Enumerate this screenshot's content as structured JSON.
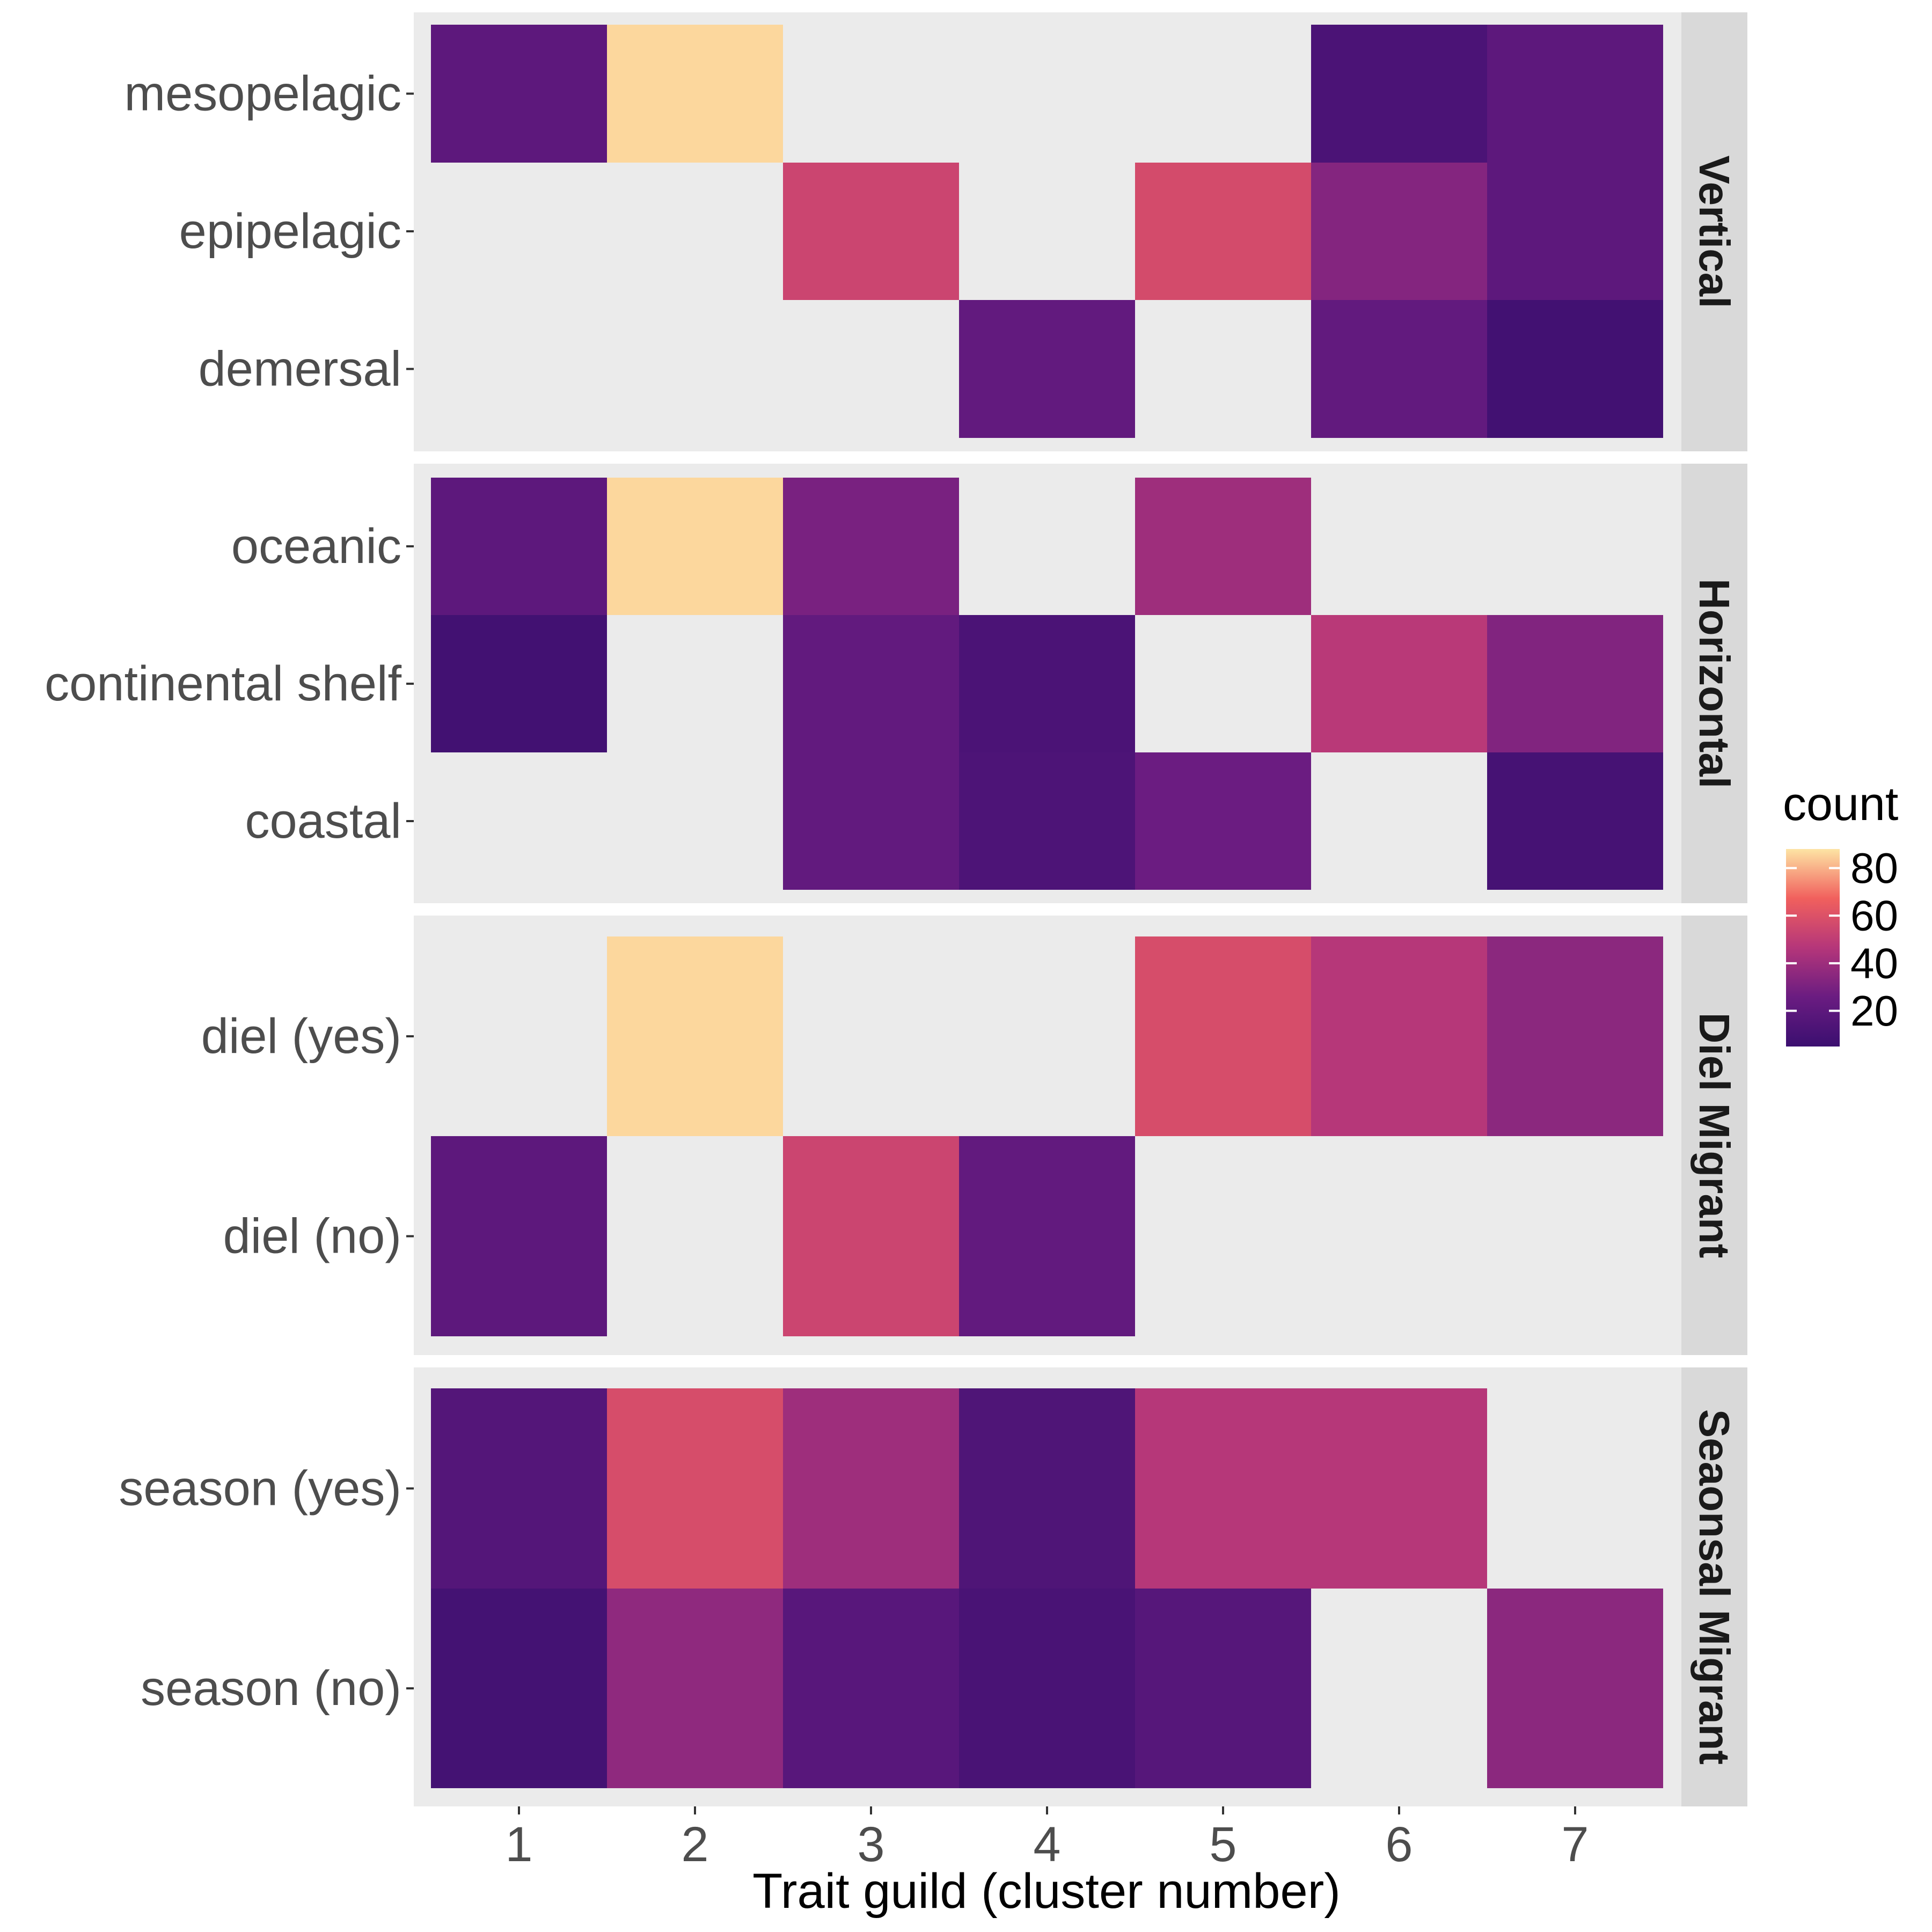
{
  "chart_data": {
    "type": "heatmap",
    "xlabel": "Trait guild (cluster number)",
    "x_categories": [
      "1",
      "2",
      "3",
      "4",
      "5",
      "6",
      "7"
    ],
    "legend": {
      "title": "count",
      "ticks": [
        20,
        40,
        60,
        80
      ],
      "range": [
        5,
        88
      ],
      "placement": "right"
    },
    "panels": [
      {
        "label": "Vertical",
        "rows": [
          {
            "label": "mesopelagic",
            "values": [
              20,
              86,
              null,
              null,
              null,
              12,
              20
            ]
          },
          {
            "label": "epipelagic",
            "values": [
              null,
              null,
              54,
              null,
              57,
              33,
              20
            ]
          },
          {
            "label": "demersal",
            "values": [
              null,
              null,
              null,
              22,
              null,
              22,
              8
            ]
          }
        ]
      },
      {
        "label": "Horizontal",
        "rows": [
          {
            "label": "oceanic",
            "values": [
              20,
              86,
              30,
              null,
              40,
              null,
              null
            ]
          },
          {
            "label": "continental shelf",
            "values": [
              8,
              null,
              22,
              12,
              null,
              48,
              32
            ]
          },
          {
            "label": "coastal",
            "values": [
              null,
              null,
              22,
              13,
              26,
              null,
              10
            ]
          }
        ]
      },
      {
        "label": "Diel Migrant",
        "rows": [
          {
            "label": "diel (yes)",
            "values": [
              null,
              86,
              null,
              null,
              58,
              47,
              35
            ]
          },
          {
            "label": "diel (no)",
            "values": [
              20,
              null,
              54,
              22,
              null,
              null,
              null
            ]
          }
        ]
      },
      {
        "label": "Seaonsal Migrant",
        "rows": [
          {
            "label": "season (yes)",
            "values": [
              16,
              58,
              40,
              14,
              47,
              47,
              null
            ]
          },
          {
            "label": "season (no)",
            "values": [
              9,
              36,
              18,
              11,
              17,
              null,
              35
            ]
          }
        ]
      }
    ],
    "colormap": "magma",
    "panel_background": "#ebebeb",
    "strip_background": "#d9d9d9"
  }
}
